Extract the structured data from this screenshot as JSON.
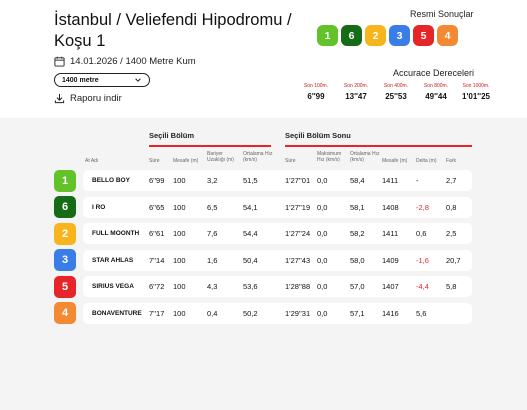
{
  "header": {
    "title": "İstanbul / Veliefendi Hipodromu / Koşu 1",
    "date_info": "14.01.2026 / 1400 Metre Kum",
    "distance_select": "1400 metre",
    "report_label": "Raporu indir",
    "calendar_icon": "calendar-icon",
    "download_icon": "download-icon"
  },
  "official": {
    "title": "Resmi Sonuçlar",
    "results": [
      {
        "num": "1",
        "color": "#62c22a"
      },
      {
        "num": "6",
        "color": "#156b16"
      },
      {
        "num": "2",
        "color": "#f7b41c"
      },
      {
        "num": "3",
        "color": "#3a7de6"
      },
      {
        "num": "5",
        "color": "#e5252a"
      },
      {
        "num": "4",
        "color": "#f38a33"
      }
    ]
  },
  "accuracy": {
    "title": "Accurace Dereceleri",
    "items": [
      {
        "label": "Son 100m.",
        "value": "6''99"
      },
      {
        "label": "Son 200m.",
        "value": "13''47"
      },
      {
        "label": "Son 400m.",
        "value": "25''53"
      },
      {
        "label": "Son 800m.",
        "value": "49''44"
      },
      {
        "label": "Son 1000m.",
        "value": "1'01''25"
      }
    ]
  },
  "table": {
    "section1": "Seçili Bölüm",
    "section2": "Seçili Bölüm Sonu",
    "columns": {
      "name": "At Adı",
      "sure1": "Süre",
      "mesafe1": "Mesafe (m)",
      "bariyer": "Bariyer Uzaklığı (m)",
      "ort1": "Ortalama Hız (km/s)",
      "sure2": "Süre",
      "maks": "Maksimum Hız (km/s)",
      "ort2": "Ortalama Hız (km/s)",
      "mesafe2": "Mesafe (m)",
      "delta": "Delta (m)",
      "fark": "Fark"
    },
    "rows": [
      {
        "num": "1",
        "color": "#62c22a",
        "name": "BELLO BOY",
        "sure1": "6''99",
        "mesafe1": "100",
        "bariyer": "3,2",
        "ort1": "51,5",
        "sure2": "1'27''01",
        "maks": "0,0",
        "ort2": "58,4",
        "mesafe2": "1411",
        "delta": "-",
        "delta_red": false,
        "fark": "2,7"
      },
      {
        "num": "6",
        "color": "#156b16",
        "name": "I RO",
        "sure1": "6''65",
        "mesafe1": "100",
        "bariyer": "6,5",
        "ort1": "54,1",
        "sure2": "1'27''19",
        "maks": "0,0",
        "ort2": "58,1",
        "mesafe2": "1408",
        "delta": "-2,8",
        "delta_red": true,
        "fark": "0,8"
      },
      {
        "num": "2",
        "color": "#f7b41c",
        "name": "FULL MOONTH",
        "sure1": "6''61",
        "mesafe1": "100",
        "bariyer": "7,6",
        "ort1": "54,4",
        "sure2": "1'27''24",
        "maks": "0,0",
        "ort2": "58,2",
        "mesafe2": "1411",
        "delta": "0,6",
        "delta_red": false,
        "fark": "2,5"
      },
      {
        "num": "3",
        "color": "#3a7de6",
        "name": "STAR AHLAS",
        "sure1": "7''14",
        "mesafe1": "100",
        "bariyer": "1,6",
        "ort1": "50,4",
        "sure2": "1'27''43",
        "maks": "0,0",
        "ort2": "58,0",
        "mesafe2": "1409",
        "delta": "-1,6",
        "delta_red": true,
        "fark": "20,7"
      },
      {
        "num": "5",
        "color": "#e5252a",
        "name": "SIRIUS VEGA",
        "sure1": "6''72",
        "mesafe1": "100",
        "bariyer": "4,3",
        "ort1": "53,6",
        "sure2": "1'28''88",
        "maks": "0,0",
        "ort2": "57,0",
        "mesafe2": "1407",
        "delta": "-4,4",
        "delta_red": true,
        "fark": "5,8"
      },
      {
        "num": "4",
        "color": "#f38a33",
        "name": "BONAVENTURE",
        "sure1": "7''17",
        "mesafe1": "100",
        "bariyer": "0,4",
        "ort1": "50,2",
        "sure2": "1'29''31",
        "maks": "0,0",
        "ort2": "57,1",
        "mesafe2": "1416",
        "delta": "5,6",
        "delta_red": false,
        "fark": ""
      }
    ]
  }
}
